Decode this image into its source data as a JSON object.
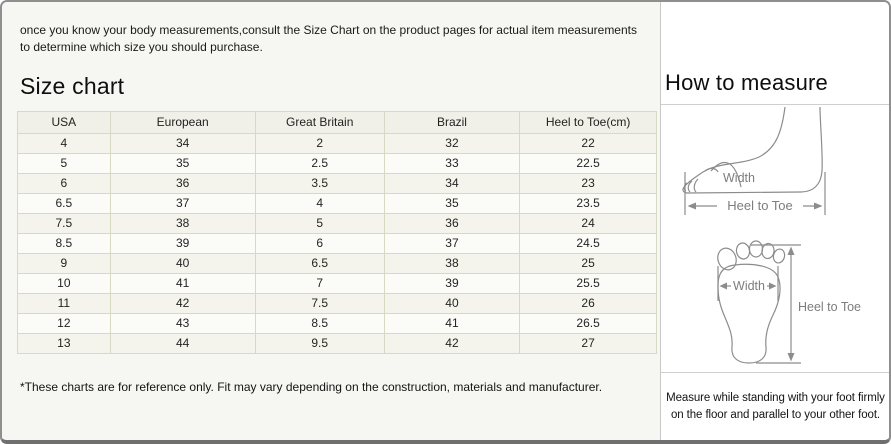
{
  "intro_text": "once you know your body measurements,consult the Size Chart on the product pages for actual item measurements to determine which size you should purchase.",
  "size_chart": {
    "title": "Size chart",
    "table": {
      "headers": [
        "USA",
        "European",
        "Great Britain",
        "Brazil",
        "Heel to Toe(cm)"
      ],
      "rows": [
        [
          "4",
          "34",
          "2",
          "32",
          "22"
        ],
        [
          "5",
          "35",
          "2.5",
          "33",
          "22.5"
        ],
        [
          "6",
          "36",
          "3.5",
          "34",
          "23"
        ],
        [
          "6.5",
          "37",
          "4",
          "35",
          "23.5"
        ],
        [
          "7.5",
          "38",
          "5",
          "36",
          "24"
        ],
        [
          "8.5",
          "39",
          "6",
          "37",
          "24.5"
        ],
        [
          "9",
          "40",
          "6.5",
          "38",
          "25"
        ],
        [
          "10",
          "41",
          "7",
          "39",
          "25.5"
        ],
        [
          "11",
          "42",
          "7.5",
          "40",
          "26"
        ],
        [
          "12",
          "43",
          "8.5",
          "41",
          "26.5"
        ],
        [
          "13",
          "44",
          "9.5",
          "42",
          "27"
        ]
      ]
    },
    "footnote": "*These charts are for reference only. Fit may vary depending on the construction, materials and manufacturer."
  },
  "how_to_measure": {
    "title": "How to measure",
    "side_view_diagram": {
      "width_label": "Width",
      "heel_to_toe_label": "Heel to Toe"
    },
    "footprint_diagram": {
      "width_label": "Width",
      "heel_to_toe_label": "Heel to Toe"
    },
    "caption": "Measure while standing with your foot firmly on the floor and parallel to your other foot."
  },
  "colors": {
    "outer_border": "#8f8f8f",
    "left_panel_bg": "#f6f6f3",
    "table_border": "#d8d8c5",
    "table_header_bg": "#f0f0e9",
    "table_row_alt_bg": "#f4f4ec",
    "diagram_stroke": "#8c8c8c",
    "diagram_label": "#7d7d7d"
  }
}
